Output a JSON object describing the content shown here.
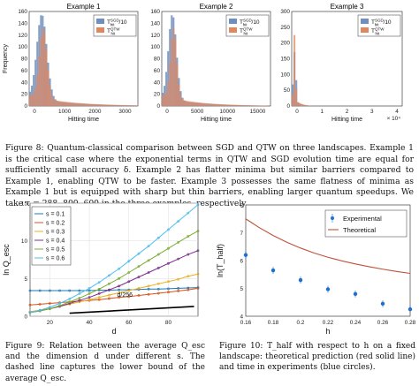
{
  "figure8": {
    "panels": [
      {
        "title": "Example 1",
        "xlabel": "Hitting time",
        "ylabel": "Frequency",
        "xticks": [
          "0",
          "1000",
          "2000",
          "3000"
        ],
        "yticks": [
          "0",
          "20",
          "40",
          "60",
          "80",
          "100",
          "120",
          "140",
          "160"
        ],
        "legend": [
          {
            "main": "T",
            "sup": "SGD",
            "sub": "hit",
            "suffix": "/10",
            "color": "#6f8fc0"
          },
          {
            "main": "T",
            "sup": "QTW",
            "sub": "hit",
            "suffix": "",
            "color": "#e0875e"
          }
        ]
      },
      {
        "title": "Example 2",
        "xlabel": "Hitting time",
        "xticks": [
          "0",
          "5000",
          "10000",
          "15000"
        ],
        "yticks": [
          "0",
          "20",
          "40",
          "60",
          "80",
          "100",
          "120",
          "140",
          "160"
        ],
        "legend": [
          {
            "main": "T",
            "sup": "SGD",
            "sub": "hit",
            "suffix": "/10",
            "color": "#6f8fc0"
          },
          {
            "main": "T",
            "sup": "QTW",
            "sub": "hit",
            "suffix": "",
            "color": "#e0875e"
          }
        ]
      },
      {
        "title": "Example 3",
        "xlabel": "Hitting time",
        "xticks": [
          "0",
          "1",
          "2",
          "3",
          "4"
        ],
        "xexp": "× 10⁴",
        "yticks": [
          "0",
          "50",
          "100",
          "150",
          "200",
          "250",
          "300"
        ],
        "legend": [
          {
            "main": "T",
            "sup": "SGD",
            "sub": "hit",
            "suffix": "/10",
            "color": "#6f8fc0"
          },
          {
            "main": "T",
            "sup": "QTW",
            "sub": "hit",
            "suffix": "",
            "color": "#e0875e"
          }
        ]
      }
    ],
    "caption": "Figure 8: Quantum-classical comparison between SGD and QTW on three landscapes. Example 1 is the critical case where the exponential terms in QTW and SGD evolution time are equal for sufficiently small accuracy δ. Example 2 has flatter minima but similar barriers compared to Example 1, enabling QTW to be faster. Example 3 possesses the same flatness of minima as Example 1 but is equipped with sharp but thin barriers, enabling larger quantum speedups. We take τ = 288, 800, 600 in the three examples, respectively."
  },
  "figure9": {
    "chart_data": {
      "type": "line",
      "xlabel": "d",
      "ylabel": "ln Q_esc",
      "xlim": [
        10,
        95
      ],
      "ylim": [
        0,
        15
      ],
      "xticks": [
        "20",
        "40",
        "60",
        "80"
      ],
      "yticks": [
        "0",
        "5",
        "10",
        "15"
      ],
      "x": [
        10,
        15,
        20,
        25,
        30,
        35,
        40,
        45,
        50,
        55,
        60,
        65,
        70,
        75,
        80,
        85,
        90,
        95
      ],
      "series": [
        {
          "name": "s = 0.1",
          "color": "#1f77b4",
          "values": [
            3.4,
            3.4,
            3.4,
            3.4,
            3.4,
            3.4,
            3.4,
            3.45,
            3.45,
            3.5,
            3.5,
            3.55,
            3.6,
            3.6,
            3.65,
            3.7,
            3.75,
            3.8
          ]
        },
        {
          "name": "s = 0.2",
          "color": "#d95319",
          "values": [
            1.5,
            1.6,
            1.7,
            1.8,
            1.9,
            2.0,
            2.1,
            2.2,
            2.35,
            2.5,
            2.6,
            2.75,
            2.9,
            3.05,
            3.2,
            3.35,
            3.5,
            3.7
          ]
        },
        {
          "name": "s = 0.3",
          "color": "#e8b020",
          "values": [
            0.6,
            0.8,
            1.0,
            1.3,
            1.6,
            1.9,
            2.2,
            2.5,
            2.8,
            3.1,
            3.4,
            3.7,
            4.0,
            4.3,
            4.6,
            4.9,
            5.3,
            5.6
          ]
        },
        {
          "name": "s = 0.4",
          "color": "#7e2f8e",
          "values": [
            0.5,
            0.7,
            1.0,
            1.3,
            1.7,
            2.1,
            2.5,
            3.0,
            3.5,
            4.0,
            4.6,
            5.2,
            5.8,
            6.4,
            7.0,
            7.6,
            8.2,
            8.7
          ]
        },
        {
          "name": "s = 0.5",
          "color": "#77ac30",
          "values": [
            0.5,
            0.7,
            1.0,
            1.4,
            1.9,
            2.4,
            3.0,
            3.6,
            4.3,
            5.0,
            5.8,
            6.6,
            7.4,
            8.2,
            9.0,
            9.8,
            10.6,
            11.3
          ]
        },
        {
          "name": "s = 0.6",
          "color": "#4dbeee",
          "values": [
            0.5,
            0.8,
            1.2,
            1.7,
            2.3,
            3.0,
            3.7,
            4.5,
            5.4,
            6.3,
            7.3,
            8.3,
            9.3,
            10.4,
            11.5,
            12.6,
            13.7,
            14.8
          ]
        }
      ],
      "bound_label": "d/256",
      "bound": {
        "x": [
          30,
          93
        ],
        "values": [
          0.4,
          1.3
        ]
      }
    },
    "caption": "Figure 9: Relation between the average Q_esc and the dimension d under different s. The dashed line captures the lower bound of the average Q_esc."
  },
  "figure10": {
    "chart_data": {
      "type": "scatter",
      "xlabel": "h",
      "ylabel": "ln(T_half)",
      "xlim": [
        0.16,
        0.28
      ],
      "ylim": [
        4,
        8
      ],
      "xticks": [
        "0.16",
        "0.18",
        "0.2",
        "0.22",
        "0.24",
        "0.26",
        "0.28"
      ],
      "yticks": [
        "4",
        "5",
        "6",
        "7",
        "8"
      ],
      "legend": [
        {
          "name": "Experimental",
          "color": "#1f6fd0"
        },
        {
          "name": "Theoretical",
          "color": "#c0503a"
        }
      ],
      "experimental": {
        "x": [
          0.16,
          0.18,
          0.2,
          0.22,
          0.24,
          0.26,
          0.28
        ],
        "values": [
          6.2,
          5.65,
          5.3,
          4.97,
          4.8,
          4.45,
          4.25
        ]
      },
      "theoretical": {
        "x": [
          0.16,
          0.17,
          0.18,
          0.19,
          0.2,
          0.21,
          0.22,
          0.23,
          0.24,
          0.25,
          0.26,
          0.27,
          0.28
        ],
        "values": [
          7.5,
          7.18,
          6.9,
          6.66,
          6.45,
          6.27,
          6.12,
          5.99,
          5.88,
          5.78,
          5.69,
          5.61,
          5.54
        ]
      }
    },
    "caption": "Figure 10: T_half with respect to h on a fixed landscape: theoretical prediction (red solid line) and time in experiments (blue circles)."
  }
}
